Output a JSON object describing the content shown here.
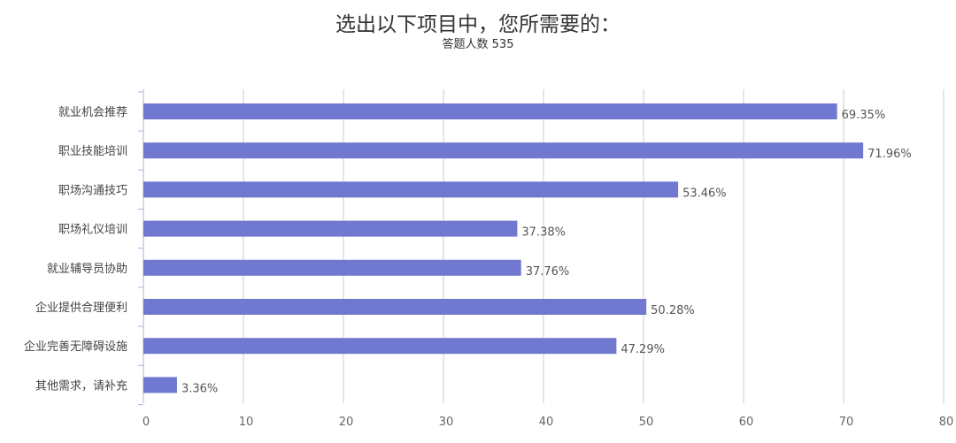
{
  "chart_data": {
    "type": "bar",
    "orientation": "horizontal",
    "title": "选出以下项目中，您所需要的：",
    "subtitle": "答题人数 535",
    "categories": [
      "就业机会推荐",
      "职业技能培训",
      "职场沟通技巧",
      "职场礼仪培训",
      "就业辅导员协助",
      "企业提供合理便利",
      "企业完善无障碍设施",
      "其他需求，请补充"
    ],
    "values": [
      69.35,
      71.96,
      53.46,
      37.38,
      37.76,
      50.28,
      47.29,
      3.36
    ],
    "value_labels": [
      "69.35%",
      "71.96%",
      "53.46%",
      "37.38%",
      "37.76%",
      "50.28%",
      "47.29%",
      "3.36%"
    ],
    "x_ticks": [
      0,
      10,
      20,
      30,
      40,
      50,
      60,
      70,
      80
    ],
    "xlim": [
      0,
      80
    ],
    "grid": true,
    "bar_color": "#7078cf",
    "grid_color": "#cccccc"
  }
}
